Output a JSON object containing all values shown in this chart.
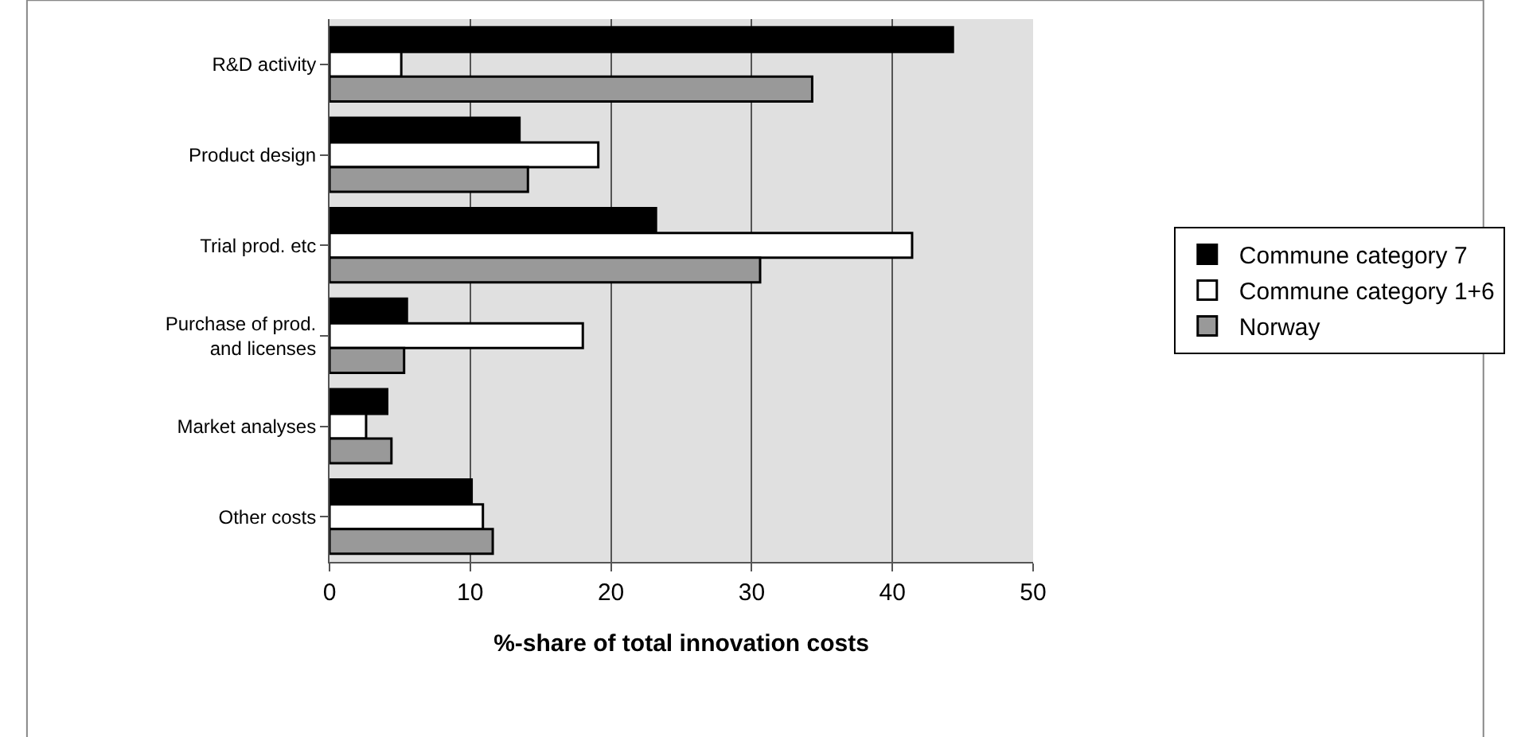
{
  "chart_data": {
    "type": "bar",
    "orientation": "horizontal",
    "xlabel": "%-share of total innovation costs",
    "categories": [
      "R&D activity",
      "Product design",
      "Trial prod. etc",
      "Purchase of prod.\nand licenses",
      "Market analyses",
      "Other costs"
    ],
    "series": [
      {
        "name": "Commune category 7",
        "color": "#000000",
        "values": [
          44.3,
          13.5,
          23.2,
          5.5,
          4.1,
          10.1
        ]
      },
      {
        "name": "Commune category 1+6",
        "color": "#ffffff",
        "values": [
          5.1,
          19.1,
          41.4,
          18.0,
          2.6,
          10.9
        ]
      },
      {
        "name": "Norway",
        "color": "#999999",
        "values": [
          34.3,
          14.1,
          30.6,
          5.3,
          4.4,
          11.6
        ]
      }
    ],
    "xlim": [
      0,
      50
    ],
    "xticks": [
      0,
      10,
      20,
      30,
      40,
      50
    ],
    "grid": "x",
    "legend": "right"
  }
}
